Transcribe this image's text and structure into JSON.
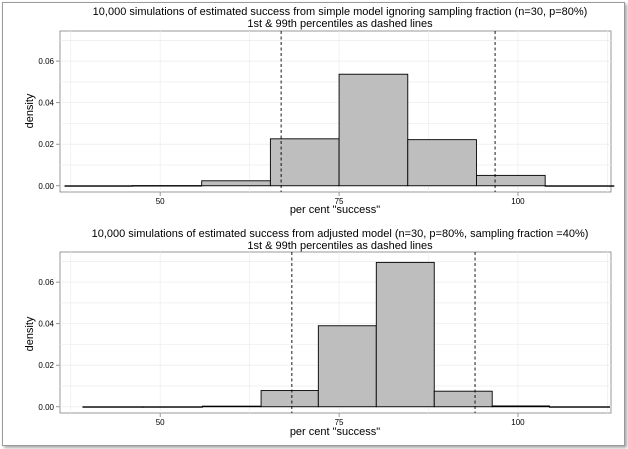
{
  "colors": {
    "panel_border": "#7f7f7f",
    "grid": "#ececec",
    "bar_fill": "#bebebe",
    "bar_stroke": "#000000",
    "text": "#000000"
  },
  "chart_data": [
    {
      "type": "histogram",
      "title": "10,000 simulations of estimated success from simple model ignoring sampling fraction (n=30, p=80%)",
      "subtitle": "1st & 99th percentiles as dashed lines",
      "xlabel": "per cent \"success\"",
      "ylabel": "density",
      "xlim": [
        36,
        113
      ],
      "ylim": [
        -0.003,
        0.0745
      ],
      "x_ticks": [
        50,
        75,
        100
      ],
      "x_tick_labels": [
        "50",
        "75",
        "100"
      ],
      "y_ticks": [
        0.0,
        0.02,
        0.04,
        0.06
      ],
      "y_tick_labels": [
        "0.00",
        "0.02",
        "0.04",
        "0.06"
      ],
      "grid": true,
      "bins": [
        {
          "x0": 36.7,
          "x1": 46.1,
          "value": 0.0
        },
        {
          "x0": 46.1,
          "x1": 55.8,
          "value": 0.0001
        },
        {
          "x0": 55.8,
          "x1": 65.4,
          "value": 0.0024
        },
        {
          "x0": 65.4,
          "x1": 75.0,
          "value": 0.0226
        },
        {
          "x0": 75.0,
          "x1": 84.6,
          "value": 0.0537
        },
        {
          "x0": 84.6,
          "x1": 94.2,
          "value": 0.0222
        },
        {
          "x0": 94.2,
          "x1": 103.8,
          "value": 0.005
        },
        {
          "x0": 103.8,
          "x1": 113.4,
          "value": 0.0
        }
      ],
      "percentile_lines": [
        66.9,
        96.8
      ]
    },
    {
      "type": "histogram",
      "title": "10,000 simulations of estimated success from adjusted model (n=30, p=80%, sampling fraction =40%)",
      "subtitle": "1st & 99th percentiles as dashed lines",
      "xlabel": "per cent \"success\"",
      "ylabel": "density",
      "xlim": [
        36,
        113
      ],
      "ylim": [
        -0.003,
        0.0745
      ],
      "x_ticks": [
        50,
        75,
        100
      ],
      "x_tick_labels": [
        "50",
        "75",
        "100"
      ],
      "y_ticks": [
        0.0,
        0.02,
        0.04,
        0.06
      ],
      "y_tick_labels": [
        "0.00",
        "0.02",
        "0.04",
        "0.06"
      ],
      "grid": true,
      "bins": [
        {
          "x0": 39.2,
          "x1": 47.6,
          "value": 0.0
        },
        {
          "x0": 47.6,
          "x1": 55.9,
          "value": 0.0
        },
        {
          "x0": 55.9,
          "x1": 64.1,
          "value": 0.0003
        },
        {
          "x0": 64.1,
          "x1": 72.1,
          "value": 0.0078
        },
        {
          "x0": 72.1,
          "x1": 80.2,
          "value": 0.039
        },
        {
          "x0": 80.2,
          "x1": 88.3,
          "value": 0.0695
        },
        {
          "x0": 88.3,
          "x1": 96.4,
          "value": 0.0075
        },
        {
          "x0": 96.4,
          "x1": 104.4,
          "value": 0.0004
        },
        {
          "x0": 104.4,
          "x1": 112.8,
          "value": 0.0
        }
      ],
      "percentile_lines": [
        68.4,
        94.0
      ]
    }
  ]
}
